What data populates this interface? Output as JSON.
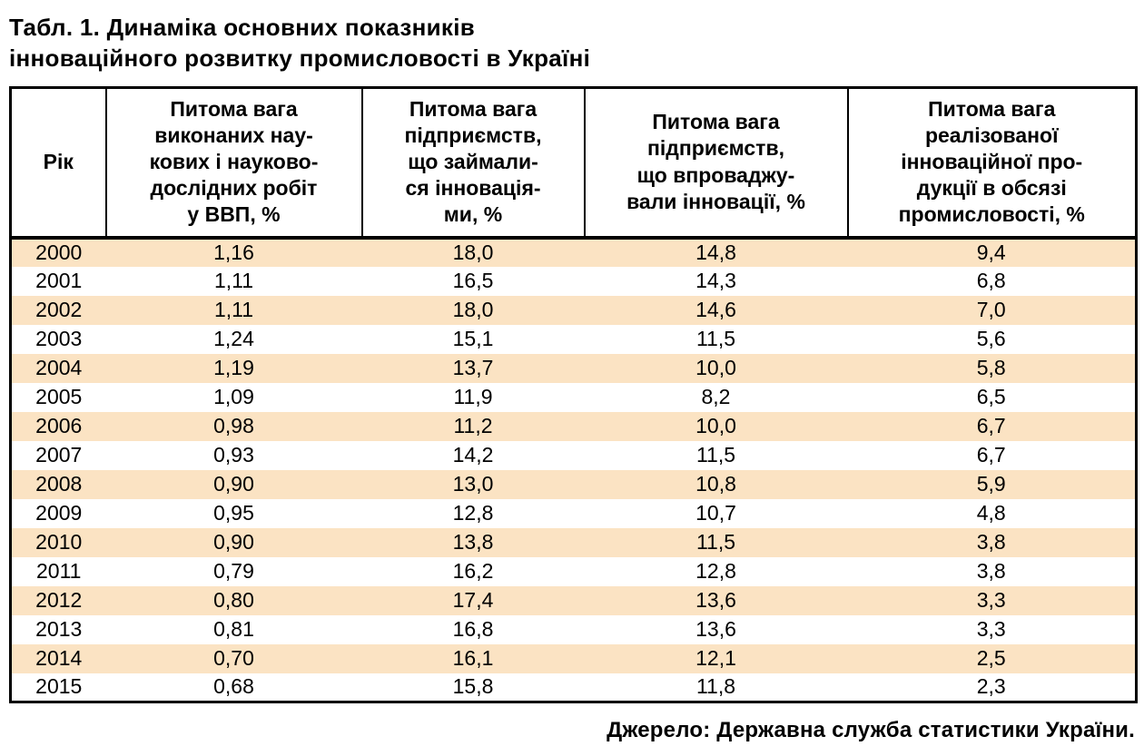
{
  "page": {
    "title": "Табл. 1. Динаміка основних показників\nінноваційного розвитку промисловості в Україні",
    "source": "Джерело: Державна служба статистики України."
  },
  "colors": {
    "stripe": "#fbe3c3",
    "border": "#000000",
    "background": "#ffffff"
  },
  "table": {
    "columns": [
      {
        "label": "Рік"
      },
      {
        "label": "Питома вага\nвиконаних нау-\nкових і науково-\nдослідних робіт\nу ВВП, %"
      },
      {
        "label": "Питома вага\nпідприємств,\nщо займали-\nся інновація-\nми, %"
      },
      {
        "label": "Питома вага\nпідприємств,\nщо впроваджу-\nвали інновації, %"
      },
      {
        "label": "Питома вага\nреалізованої\nінноваційної про-\nдукції в обсязі\nпромисловості, %"
      }
    ],
    "rows": [
      {
        "year": "2000",
        "values": [
          "1,16",
          "18,0",
          "14,8",
          "9,4"
        ]
      },
      {
        "year": "2001",
        "values": [
          "1,11",
          "16,5",
          "14,3",
          "6,8"
        ]
      },
      {
        "year": "2002",
        "values": [
          "1,11",
          "18,0",
          "14,6",
          "7,0"
        ]
      },
      {
        "year": "2003",
        "values": [
          "1,24",
          "15,1",
          "11,5",
          "5,6"
        ]
      },
      {
        "year": "2004",
        "values": [
          "1,19",
          "13,7",
          "10,0",
          "5,8"
        ]
      },
      {
        "year": "2005",
        "values": [
          "1,09",
          "11,9",
          "8,2",
          "6,5"
        ]
      },
      {
        "year": "2006",
        "values": [
          "0,98",
          "11,2",
          "10,0",
          "6,7"
        ]
      },
      {
        "year": "2007",
        "values": [
          "0,93",
          "14,2",
          "11,5",
          "6,7"
        ]
      },
      {
        "year": "2008",
        "values": [
          "0,90",
          "13,0",
          "10,8",
          "5,9"
        ]
      },
      {
        "year": "2009",
        "values": [
          "0,95",
          "12,8",
          "10,7",
          "4,8"
        ]
      },
      {
        "year": "2010",
        "values": [
          "0,90",
          "13,8",
          "11,5",
          "3,8"
        ]
      },
      {
        "year": "2011",
        "values": [
          "0,79",
          "16,2",
          "12,8",
          "3,8"
        ]
      },
      {
        "year": "2012",
        "values": [
          "0,80",
          "17,4",
          "13,6",
          "3,3"
        ]
      },
      {
        "year": "2013",
        "values": [
          "0,81",
          "16,8",
          "13,6",
          "3,3"
        ]
      },
      {
        "year": "2014",
        "values": [
          "0,70",
          "16,1",
          "12,1",
          "2,5"
        ]
      },
      {
        "year": "2015",
        "values": [
          "0,68",
          "15,8",
          "11,8",
          "2,3"
        ]
      }
    ]
  }
}
